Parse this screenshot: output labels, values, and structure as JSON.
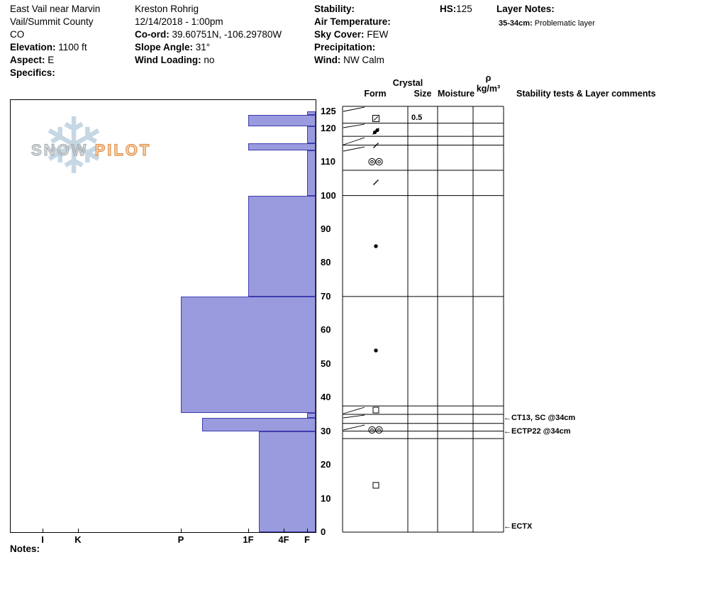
{
  "header": {
    "pit_info": {
      "lines": [
        "East Vail near Marvin",
        "Vail/Summit County",
        "CO"
      ],
      "elevation_label": "Elevation:",
      "elevation": "1100 ft",
      "aspect_label": "Aspect:",
      "aspect": "E",
      "specifics_label": "Specifics:",
      "specifics": ""
    },
    "observer": {
      "name": "Kreston Rohrig",
      "datetime": "12/14/2018 - 1:00pm",
      "coord_label": "Co-ord:",
      "coord": "39.60751N, -106.29780W",
      "slope_label": "Slope Angle:",
      "slope": "31°",
      "wind_loading_label": "Wind Loading:",
      "wind_loading": "no"
    },
    "weather": {
      "stability_label": "Stability:",
      "stability": "",
      "air_temp_label": "Air Temperature:",
      "air_temp": "",
      "sky_label": "Sky Cover:",
      "sky": "FEW",
      "precip_label": "Precipitation:",
      "precip": "",
      "wind_label": "Wind:",
      "wind": "NW Calm"
    },
    "hs_label": "HS:",
    "hs_value": "125",
    "layer_notes_label": "Layer Notes:",
    "layer_note_depth": "35-34cm:",
    "layer_note_text": "Problematic layer"
  },
  "logo": {
    "snow": "SNOW",
    "pilot": "PILOT",
    "snowflake": "❄"
  },
  "table": {
    "crystal": "Crystal",
    "form": "Form",
    "size": "Size",
    "moisture": "Moisture",
    "rho": "ρ",
    "rho_units": "kg/m³",
    "stability_header": "Stability tests & Layer comments"
  },
  "footer": {
    "notes_label": "Notes:"
  },
  "chart_data": {
    "type": "bar",
    "orientation": "horizontal-bars-from-right",
    "x_categories": [
      "I",
      "K",
      "P",
      "1F",
      "4F",
      "F"
    ],
    "depth_ticks": [
      125,
      120,
      110,
      100,
      90,
      80,
      70,
      60,
      50,
      40,
      30,
      20,
      10,
      0
    ],
    "ylim": [
      0,
      128.5
    ],
    "hs_cm": 125,
    "bar_fill": "#9a9ade",
    "bar_border": "#3d3daf",
    "layers": [
      {
        "top_cm": 125,
        "bottom_cm": 124,
        "hardness": "F"
      },
      {
        "top_cm": 124,
        "bottom_cm": 120.5,
        "hardness": "1F"
      },
      {
        "top_cm": 120.5,
        "bottom_cm": 115.5,
        "hardness": "F"
      },
      {
        "top_cm": 115.5,
        "bottom_cm": 113.5,
        "hardness": "1F"
      },
      {
        "top_cm": 113.5,
        "bottom_cm": 100,
        "hardness": "F"
      },
      {
        "top_cm": 100,
        "bottom_cm": 70,
        "hardness": "1F"
      },
      {
        "top_cm": 70,
        "bottom_cm": 35.5,
        "hardness": "P"
      },
      {
        "top_cm": 35.5,
        "bottom_cm": 34,
        "hardness": "F"
      },
      {
        "top_cm": 34,
        "bottom_cm": 30,
        "hardness": "P-1F"
      },
      {
        "top_cm": 30,
        "bottom_cm": 0,
        "hardness": "1F-4F"
      }
    ],
    "grain_forms": [
      {
        "symbol": "slashed-square",
        "depth_cm": 122.8
      },
      {
        "symbol": "cluster",
        "depth_cm": 119
      },
      {
        "symbol": "slash",
        "depth_cm": 114.8
      },
      {
        "symbol": "double-bullseye",
        "depth_cm": 110
      },
      {
        "symbol": "slash",
        "depth_cm": 104
      },
      {
        "symbol": "dot",
        "depth_cm": 85
      },
      {
        "symbol": "dot",
        "depth_cm": 54
      },
      {
        "symbol": "square",
        "depth_cm": 36.2
      },
      {
        "symbol": "double-bullseye",
        "depth_cm": 30.3
      },
      {
        "symbol": "square",
        "depth_cm": 14
      }
    ],
    "grain_sizes": [
      {
        "text": "0.5",
        "depth_cm": 122.8
      }
    ],
    "row_boundaries_cm": [
      126.5,
      121.5,
      117.6,
      115,
      107.5,
      100,
      70,
      37.5,
      35,
      32.3,
      30,
      27.8,
      0
    ],
    "test_annotations": [
      {
        "text": "CT13, SC @34cm",
        "depth_cm": 33.7
      },
      {
        "text": "ECTP22 @34cm",
        "depth_cm": 29.7
      },
      {
        "text": "ECTX",
        "depth_cm": 1.5
      }
    ]
  }
}
